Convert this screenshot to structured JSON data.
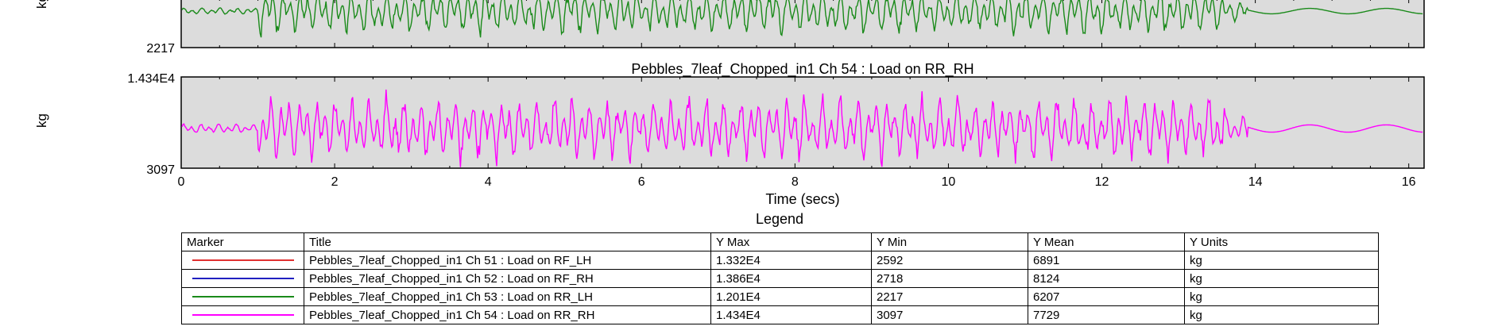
{
  "chart_data": [
    {
      "type": "line",
      "title": "",
      "ylabel": "kg",
      "ylim_min_label": "2217",
      "ylim": [
        2217,
        12010
      ],
      "series": [
        {
          "name": "Pebbles_7leaf_Chopped_in1  Ch 53 : Load on RR_LH",
          "color": "#1a8a1a"
        }
      ]
    },
    {
      "type": "line",
      "title": "Pebbles_7leaf_Chopped_in1  Ch 54 : Load on RR_RH",
      "ylabel": "kg",
      "ylim": [
        3097,
        14340
      ],
      "ytick_labels": [
        "1.434E4",
        "3097"
      ],
      "xlabel": "Time (secs)",
      "xlim": [
        0,
        16.2
      ],
      "xticks": [
        "0",
        "2",
        "4",
        "6",
        "8",
        "10",
        "12",
        "14",
        "16"
      ],
      "series": [
        {
          "name": "Pebbles_7leaf_Chopped_in1  Ch 54 : Load on RR_RH",
          "color": "#ff00ff"
        }
      ]
    }
  ],
  "legend": {
    "title": "Legend",
    "headers": [
      "Marker",
      "Title",
      "Y Max",
      "Y Min",
      "Y Mean",
      "Y Units"
    ],
    "rows": [
      {
        "color": "#e03030",
        "title": "Pebbles_7leaf_Chopped_in1  Ch 51 : Load on RF_LH",
        "ymax": "1.332E4",
        "ymin": "2592",
        "ymean": "6891",
        "units": "kg"
      },
      {
        "color": "#2020c0",
        "title": "Pebbles_7leaf_Chopped_in1  Ch 52 : Load on RF_RH",
        "ymax": "1.386E4",
        "ymin": "2718",
        "ymean": "8124",
        "units": "kg"
      },
      {
        "color": "#1a8a1a",
        "title": "Pebbles_7leaf_Chopped_in1  Ch 53 : Load on RR_LH",
        "ymax": "1.201E4",
        "ymin": "2217",
        "ymean": "6207",
        "units": "kg"
      },
      {
        "color": "#ff00ff",
        "title": "Pebbles_7leaf_Chopped_in1  Ch 54 : Load on RR_RH",
        "ymax": "1.434E4",
        "ymin": "3097",
        "ymean": "7729",
        "units": "kg"
      }
    ]
  }
}
